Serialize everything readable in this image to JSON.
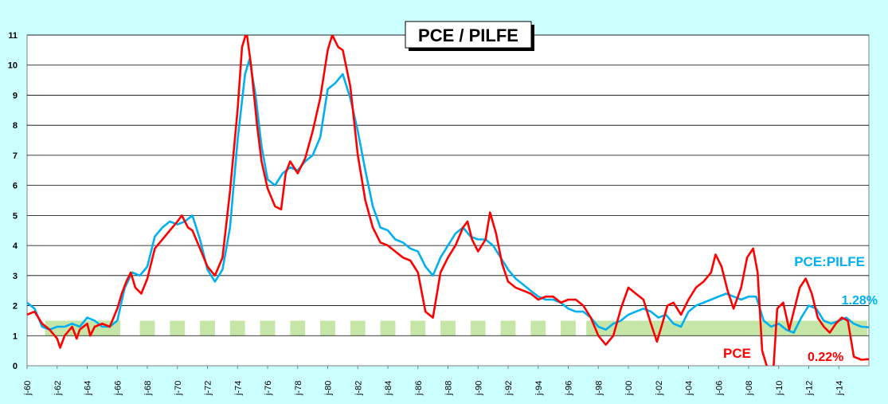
{
  "chart_data": {
    "type": "line",
    "title": "PCE / PILFE",
    "xlabel": "",
    "ylabel": "",
    "ylim": [
      0,
      11
    ],
    "yticks": [
      "0",
      "1",
      "2",
      "3",
      "4",
      "5",
      "6",
      "7",
      "8",
      "9",
      "10",
      "11"
    ],
    "xlim": [
      1960,
      2016
    ],
    "xticks": [
      "j-60",
      "j-62",
      "j-64",
      "j-66",
      "j-68",
      "j-70",
      "j-72",
      "j-74",
      "j-76",
      "j-78",
      "j-80",
      "j-82",
      "j-84",
      "j-86",
      "j-88",
      "j-90",
      "j-92",
      "j-94",
      "j-96",
      "j-98",
      "j-00",
      "j-02",
      "j-04",
      "j-06",
      "j-08",
      "j-10",
      "j-12",
      "j-14"
    ],
    "grid": true,
    "target_band": [
      1,
      1.5
    ],
    "series": [
      {
        "name": "PCE",
        "color": "#ff0000",
        "points": [
          [
            1960.0,
            1.7
          ],
          [
            1960.5,
            1.8
          ],
          [
            1961.0,
            1.4
          ],
          [
            1961.5,
            1.2
          ],
          [
            1962.0,
            0.9
          ],
          [
            1962.2,
            0.6
          ],
          [
            1962.5,
            1.0
          ],
          [
            1963.0,
            1.3
          ],
          [
            1963.3,
            0.9
          ],
          [
            1963.5,
            1.2
          ],
          [
            1964.0,
            1.4
          ],
          [
            1964.2,
            1.0
          ],
          [
            1964.5,
            1.3
          ],
          [
            1965.0,
            1.4
          ],
          [
            1965.5,
            1.3
          ],
          [
            1966.0,
            1.9
          ],
          [
            1966.3,
            2.4
          ],
          [
            1966.6,
            2.8
          ],
          [
            1966.9,
            3.1
          ],
          [
            1967.2,
            2.6
          ],
          [
            1967.6,
            2.4
          ],
          [
            1968.0,
            2.9
          ],
          [
            1968.5,
            3.9
          ],
          [
            1969.0,
            4.2
          ],
          [
            1969.5,
            4.5
          ],
          [
            1970.0,
            4.8
          ],
          [
            1970.3,
            5.0
          ],
          [
            1970.7,
            4.6
          ],
          [
            1971.0,
            4.5
          ],
          [
            1971.5,
            3.9
          ],
          [
            1972.0,
            3.3
          ],
          [
            1972.5,
            3.0
          ],
          [
            1973.0,
            3.6
          ],
          [
            1973.5,
            5.8
          ],
          [
            1974.0,
            8.5
          ],
          [
            1974.3,
            10.6
          ],
          [
            1974.6,
            11.1
          ],
          [
            1974.9,
            10.0
          ],
          [
            1975.3,
            8.0
          ],
          [
            1975.6,
            6.8
          ],
          [
            1976.0,
            5.9
          ],
          [
            1976.5,
            5.3
          ],
          [
            1976.9,
            5.2
          ],
          [
            1977.2,
            6.4
          ],
          [
            1977.5,
            6.8
          ],
          [
            1978.0,
            6.4
          ],
          [
            1978.5,
            6.9
          ],
          [
            1979.0,
            7.8
          ],
          [
            1979.5,
            8.9
          ],
          [
            1980.0,
            10.5
          ],
          [
            1980.3,
            11.0
          ],
          [
            1980.7,
            10.6
          ],
          [
            1981.0,
            10.5
          ],
          [
            1981.5,
            9.3
          ],
          [
            1982.0,
            7.0
          ],
          [
            1982.5,
            5.5
          ],
          [
            1983.0,
            4.6
          ],
          [
            1983.5,
            4.1
          ],
          [
            1984.0,
            4.0
          ],
          [
            1984.5,
            3.8
          ],
          [
            1985.0,
            3.6
          ],
          [
            1985.5,
            3.5
          ],
          [
            1986.0,
            3.1
          ],
          [
            1986.5,
            1.8
          ],
          [
            1987.0,
            1.6
          ],
          [
            1987.5,
            3.1
          ],
          [
            1988.0,
            3.6
          ],
          [
            1988.5,
            4.0
          ],
          [
            1989.0,
            4.6
          ],
          [
            1989.3,
            4.8
          ],
          [
            1989.6,
            4.2
          ],
          [
            1990.0,
            3.8
          ],
          [
            1990.5,
            4.2
          ],
          [
            1990.8,
            5.1
          ],
          [
            1991.2,
            4.4
          ],
          [
            1991.6,
            3.4
          ],
          [
            1992.0,
            2.8
          ],
          [
            1992.5,
            2.6
          ],
          [
            1993.0,
            2.5
          ],
          [
            1993.5,
            2.4
          ],
          [
            1994.0,
            2.2
          ],
          [
            1994.5,
            2.3
          ],
          [
            1995.0,
            2.3
          ],
          [
            1995.5,
            2.1
          ],
          [
            1996.0,
            2.2
          ],
          [
            1996.5,
            2.2
          ],
          [
            1997.0,
            2.0
          ],
          [
            1997.5,
            1.6
          ],
          [
            1998.0,
            1.0
          ],
          [
            1998.5,
            0.7
          ],
          [
            1999.0,
            1.0
          ],
          [
            1999.5,
            1.9
          ],
          [
            2000.0,
            2.6
          ],
          [
            2000.5,
            2.4
          ],
          [
            2001.0,
            2.2
          ],
          [
            2001.5,
            1.4
          ],
          [
            2001.9,
            0.8
          ],
          [
            2002.2,
            1.3
          ],
          [
            2002.6,
            2.0
          ],
          [
            2003.0,
            2.1
          ],
          [
            2003.5,
            1.7
          ],
          [
            2004.0,
            2.2
          ],
          [
            2004.5,
            2.6
          ],
          [
            2005.0,
            2.8
          ],
          [
            2005.5,
            3.1
          ],
          [
            2005.8,
            3.7
          ],
          [
            2006.2,
            3.3
          ],
          [
            2006.6,
            2.5
          ],
          [
            2007.0,
            1.9
          ],
          [
            2007.5,
            2.6
          ],
          [
            2007.9,
            3.6
          ],
          [
            2008.3,
            3.9
          ],
          [
            2008.6,
            3.1
          ],
          [
            2008.9,
            0.5
          ],
          [
            2009.2,
            0.0
          ],
          [
            2009.6,
            -0.5
          ],
          [
            2009.9,
            1.9
          ],
          [
            2010.3,
            2.1
          ],
          [
            2010.7,
            1.2
          ],
          [
            2011.0,
            1.8
          ],
          [
            2011.4,
            2.6
          ],
          [
            2011.8,
            2.9
          ],
          [
            2012.2,
            2.4
          ],
          [
            2012.6,
            1.6
          ],
          [
            2013.0,
            1.3
          ],
          [
            2013.4,
            1.1
          ],
          [
            2013.8,
            1.4
          ],
          [
            2014.2,
            1.6
          ],
          [
            2014.6,
            1.5
          ],
          [
            2015.0,
            0.3
          ],
          [
            2015.5,
            0.2
          ],
          [
            2016.0,
            0.22
          ]
        ]
      },
      {
        "name": "PCE:PILFE",
        "color": "#00b0f0",
        "points": [
          [
            1960.0,
            2.1
          ],
          [
            1960.5,
            1.9
          ],
          [
            1961.0,
            1.3
          ],
          [
            1961.5,
            1.2
          ],
          [
            1962.0,
            1.3
          ],
          [
            1962.5,
            1.3
          ],
          [
            1963.0,
            1.4
          ],
          [
            1963.5,
            1.3
          ],
          [
            1964.0,
            1.6
          ],
          [
            1964.5,
            1.5
          ],
          [
            1965.0,
            1.3
          ],
          [
            1965.5,
            1.3
          ],
          [
            1966.0,
            1.5
          ],
          [
            1966.5,
            2.6
          ],
          [
            1967.0,
            3.1
          ],
          [
            1967.5,
            3.0
          ],
          [
            1968.0,
            3.3
          ],
          [
            1968.5,
            4.3
          ],
          [
            1969.0,
            4.6
          ],
          [
            1969.5,
            4.8
          ],
          [
            1970.0,
            4.7
          ],
          [
            1970.5,
            4.8
          ],
          [
            1971.0,
            5.0
          ],
          [
            1971.5,
            4.2
          ],
          [
            1972.0,
            3.2
          ],
          [
            1972.5,
            2.8
          ],
          [
            1973.0,
            3.2
          ],
          [
            1973.5,
            4.6
          ],
          [
            1974.0,
            7.5
          ],
          [
            1974.5,
            9.7
          ],
          [
            1974.8,
            10.2
          ],
          [
            1975.2,
            9.0
          ],
          [
            1975.6,
            7.3
          ],
          [
            1976.0,
            6.2
          ],
          [
            1976.5,
            6.0
          ],
          [
            1977.0,
            6.4
          ],
          [
            1977.5,
            6.6
          ],
          [
            1978.0,
            6.5
          ],
          [
            1978.5,
            6.8
          ],
          [
            1979.0,
            7.0
          ],
          [
            1979.5,
            7.6
          ],
          [
            1980.0,
            9.2
          ],
          [
            1980.5,
            9.4
          ],
          [
            1981.0,
            9.7
          ],
          [
            1981.5,
            8.9
          ],
          [
            1982.0,
            7.8
          ],
          [
            1982.5,
            6.5
          ],
          [
            1983.0,
            5.3
          ],
          [
            1983.5,
            4.6
          ],
          [
            1984.0,
            4.5
          ],
          [
            1984.5,
            4.2
          ],
          [
            1985.0,
            4.1
          ],
          [
            1985.5,
            3.9
          ],
          [
            1986.0,
            3.8
          ],
          [
            1986.5,
            3.3
          ],
          [
            1987.0,
            3.0
          ],
          [
            1987.5,
            3.6
          ],
          [
            1988.0,
            4.0
          ],
          [
            1988.5,
            4.4
          ],
          [
            1989.0,
            4.6
          ],
          [
            1989.5,
            4.3
          ],
          [
            1990.0,
            4.2
          ],
          [
            1990.5,
            4.2
          ],
          [
            1991.0,
            4.0
          ],
          [
            1991.5,
            3.6
          ],
          [
            1992.0,
            3.2
          ],
          [
            1992.5,
            2.9
          ],
          [
            1993.0,
            2.7
          ],
          [
            1993.5,
            2.5
          ],
          [
            1994.0,
            2.3
          ],
          [
            1994.5,
            2.2
          ],
          [
            1995.0,
            2.2
          ],
          [
            1995.5,
            2.1
          ],
          [
            1996.0,
            1.9
          ],
          [
            1996.5,
            1.8
          ],
          [
            1997.0,
            1.8
          ],
          [
            1997.5,
            1.6
          ],
          [
            1998.0,
            1.3
          ],
          [
            1998.5,
            1.2
          ],
          [
            1999.0,
            1.4
          ],
          [
            1999.5,
            1.5
          ],
          [
            2000.0,
            1.7
          ],
          [
            2000.5,
            1.8
          ],
          [
            2001.0,
            1.9
          ],
          [
            2001.5,
            1.8
          ],
          [
            2002.0,
            1.6
          ],
          [
            2002.5,
            1.7
          ],
          [
            2003.0,
            1.4
          ],
          [
            2003.5,
            1.3
          ],
          [
            2004.0,
            1.8
          ],
          [
            2004.5,
            2.0
          ],
          [
            2005.0,
            2.1
          ],
          [
            2005.5,
            2.2
          ],
          [
            2006.0,
            2.3
          ],
          [
            2006.5,
            2.4
          ],
          [
            2007.0,
            2.3
          ],
          [
            2007.5,
            2.2
          ],
          [
            2008.0,
            2.3
          ],
          [
            2008.5,
            2.3
          ],
          [
            2009.0,
            1.5
          ],
          [
            2009.5,
            1.3
          ],
          [
            2010.0,
            1.4
          ],
          [
            2010.5,
            1.2
          ],
          [
            2011.0,
            1.1
          ],
          [
            2011.5,
            1.6
          ],
          [
            2012.0,
            2.0
          ],
          [
            2012.5,
            1.9
          ],
          [
            2013.0,
            1.5
          ],
          [
            2013.5,
            1.4
          ],
          [
            2014.0,
            1.5
          ],
          [
            2014.5,
            1.6
          ],
          [
            2015.0,
            1.4
          ],
          [
            2015.5,
            1.3
          ],
          [
            2016.0,
            1.28
          ]
        ]
      }
    ],
    "annotations": {
      "pilfe_label": "PCE:PILFE",
      "pilfe_value": "1.28%",
      "pce_label": "PCE",
      "pce_value": "0.22%"
    }
  }
}
